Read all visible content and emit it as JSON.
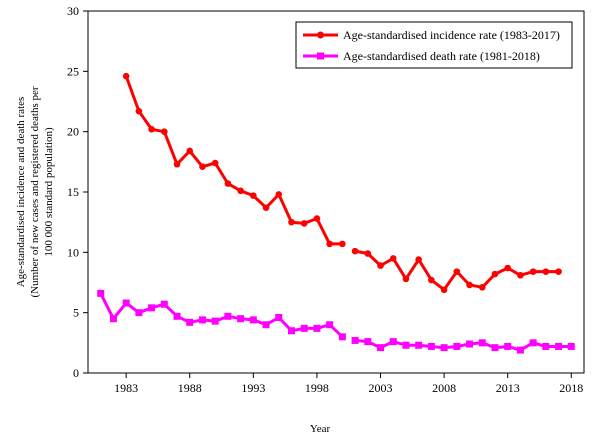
{
  "chart_data": {
    "type": "line",
    "title": "",
    "xlabel": "Year",
    "ylabel_lines": [
      "Age-standardised incidence and death rates",
      "(Number of new cases and registered deaths per",
      "100 000 standard population)"
    ],
    "xlim": [
      1980,
      2019
    ],
    "ylim": [
      0,
      30
    ],
    "x_ticks": [
      1983,
      1988,
      1993,
      1998,
      2003,
      2008,
      2013,
      2018
    ],
    "x_tick_labels": [
      "1983",
      "1988",
      "1993",
      "1998",
      "2003",
      "2008",
      "2013",
      "2018"
    ],
    "y_ticks": [
      0,
      5,
      10,
      15,
      20,
      25,
      30
    ],
    "y_tick_labels": [
      "0",
      "5",
      "10",
      "15",
      "20",
      "25",
      "30"
    ],
    "grid": false,
    "legend_position": "top-right",
    "series": [
      {
        "name": "Age-standardised incidence rate (1983-2017)",
        "color": "#ff0000",
        "marker": "circle",
        "segments": [
          {
            "x": [
              1983,
              1984,
              1985,
              1986,
              1987,
              1988,
              1989,
              1990,
              1991,
              1992,
              1993,
              1994,
              1995,
              1996,
              1997,
              1998,
              1999,
              2000
            ],
            "y": [
              24.6,
              21.7,
              20.2,
              20.0,
              17.3,
              18.4,
              17.1,
              17.4,
              15.7,
              15.1,
              14.7,
              13.7,
              14.8,
              12.5,
              12.4,
              12.8,
              10.7,
              10.7
            ]
          },
          {
            "x": [
              2001,
              2002,
              2003,
              2004,
              2005,
              2006,
              2007,
              2008,
              2009,
              2010,
              2011,
              2012,
              2013,
              2014,
              2015,
              2016,
              2017
            ],
            "y": [
              10.1,
              9.9,
              8.9,
              9.5,
              7.8,
              9.4,
              7.7,
              6.9,
              8.4,
              7.3,
              7.1,
              8.2,
              8.7,
              8.1,
              8.4,
              8.4,
              8.4
            ]
          }
        ]
      },
      {
        "name": "Age-standardised death rate (1981-2018)",
        "color": "#ff00ff",
        "marker": "square",
        "segments": [
          {
            "x": [
              1981,
              1982,
              1983,
              1984,
              1985,
              1986,
              1987,
              1988,
              1989,
              1990,
              1991,
              1992,
              1993,
              1994,
              1995,
              1996,
              1997,
              1998,
              1999,
              2000
            ],
            "y": [
              6.6,
              4.5,
              5.8,
              5.0,
              5.4,
              5.7,
              4.7,
              4.2,
              4.4,
              4.3,
              4.7,
              4.5,
              4.4,
              4.0,
              4.6,
              3.5,
              3.7,
              3.7,
              4.0,
              3.0
            ]
          },
          {
            "x": [
              2001,
              2002,
              2003,
              2004,
              2005,
              2006,
              2007,
              2008,
              2009,
              2010,
              2011,
              2012,
              2013,
              2014,
              2015,
              2016,
              2017,
              2018
            ],
            "y": [
              2.7,
              2.6,
              2.1,
              2.6,
              2.3,
              2.3,
              2.2,
              2.1,
              2.2,
              2.4,
              2.5,
              2.1,
              2.2,
              1.9,
              2.5,
              2.2,
              2.2,
              2.2
            ]
          }
        ]
      }
    ]
  }
}
